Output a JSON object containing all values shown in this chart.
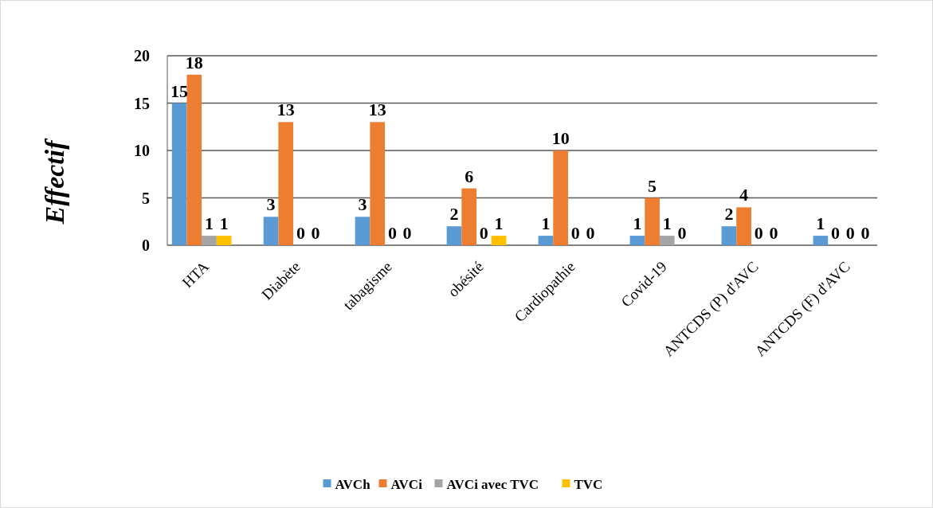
{
  "chart_data": {
    "type": "bar",
    "ylabel": "Effectif",
    "categories": [
      "HTA",
      "Diabète",
      "tabagisme",
      "obésité",
      "Cardiopathie",
      "Covid-19",
      "ANTCDS (P) d'AVC",
      "ANTCDS (F) d'AVC"
    ],
    "series": [
      {
        "name": "AVCh",
        "color": "#5b9bd5",
        "values": [
          15,
          3,
          3,
          2,
          1,
          1,
          2,
          1
        ]
      },
      {
        "name": "AVCi",
        "color": "#ed7d31",
        "values": [
          18,
          13,
          13,
          6,
          10,
          5,
          4,
          0
        ]
      },
      {
        "name": "AVCi avec TVC",
        "color": "#a5a5a5",
        "values": [
          1,
          0,
          0,
          0,
          0,
          1,
          0,
          0
        ]
      },
      {
        "name": "TVC",
        "color": "#ffc000",
        "values": [
          1,
          0,
          0,
          1,
          0,
          0,
          0,
          0
        ]
      }
    ],
    "ylim": [
      0,
      20
    ],
    "yticks": [
      0,
      5,
      10,
      15,
      20
    ],
    "grid": "y",
    "legend": "bottom",
    "data_labels": true
  }
}
